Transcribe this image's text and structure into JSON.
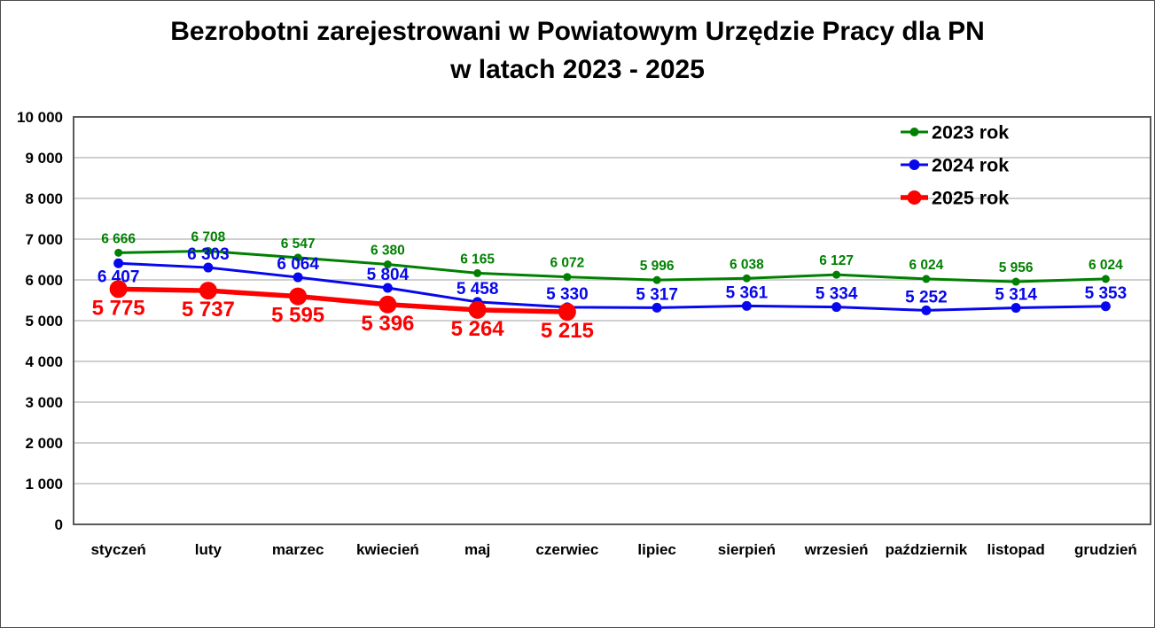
{
  "title": {
    "line1": "Bezrobotni zarejestrowani w Powiatowym Urzędzie Pracy dla PN",
    "line2": "w latach 2023 - 2025"
  },
  "colors": {
    "background": "#FFFFFF",
    "plot_border": "#595959",
    "gridline": "#BFBFBF",
    "text": "#000000",
    "series_2023": "#008000",
    "series_2024": "#0707EE",
    "series_2025": "#FF0000"
  },
  "chart_data": {
    "type": "line",
    "title": "Bezrobotni zarejestrowani w Powiatowym Urzędzie Pracy dla PN w latach 2023 - 2025",
    "xlabel": "",
    "ylabel": "",
    "ylim": [
      0,
      10000
    ],
    "ytick_interval": 1000,
    "yticks": [
      "0",
      "1 000",
      "2 000",
      "3 000",
      "4 000",
      "5 000",
      "6 000",
      "7 000",
      "8 000",
      "9 000",
      "10 000"
    ],
    "grid": true,
    "legend_position": "top-right",
    "categories": [
      "styczeń",
      "luty",
      "marzec",
      "kwiecień",
      "maj",
      "czerwiec",
      "lipiec",
      "sierpień",
      "wrzesień",
      "październik",
      "listopad",
      "grudzień"
    ],
    "series": [
      {
        "name": "2023 rok",
        "color": "#008000",
        "values": [
          6666,
          6708,
          6547,
          6380,
          6165,
          6072,
          5996,
          6038,
          6127,
          6024,
          5956,
          6024
        ],
        "labels": [
          "6 666",
          "6 708",
          "6 547",
          "6 380",
          "6 165",
          "6 072",
          "5 996",
          "6 038",
          "6 127",
          "6 024",
          "5 956",
          "6 024"
        ]
      },
      {
        "name": "2024 rok",
        "color": "#0707EE",
        "values": [
          6407,
          6303,
          6064,
          5804,
          5458,
          5330,
          5317,
          5361,
          5334,
          5252,
          5314,
          5353
        ],
        "labels": [
          "6 407",
          "6 303",
          "6 064",
          "5 804",
          "5 458",
          "5 330",
          "5 317",
          "5 361",
          "5 334",
          "5 252",
          "5 314",
          "5 353"
        ]
      },
      {
        "name": "2025 rok",
        "color": "#FF0000",
        "values": [
          5775,
          5737,
          5595,
          5396,
          5264,
          5215
        ],
        "labels": [
          "5 775",
          "5 737",
          "5 595",
          "5 396",
          "5 264",
          "5 215"
        ]
      }
    ]
  }
}
